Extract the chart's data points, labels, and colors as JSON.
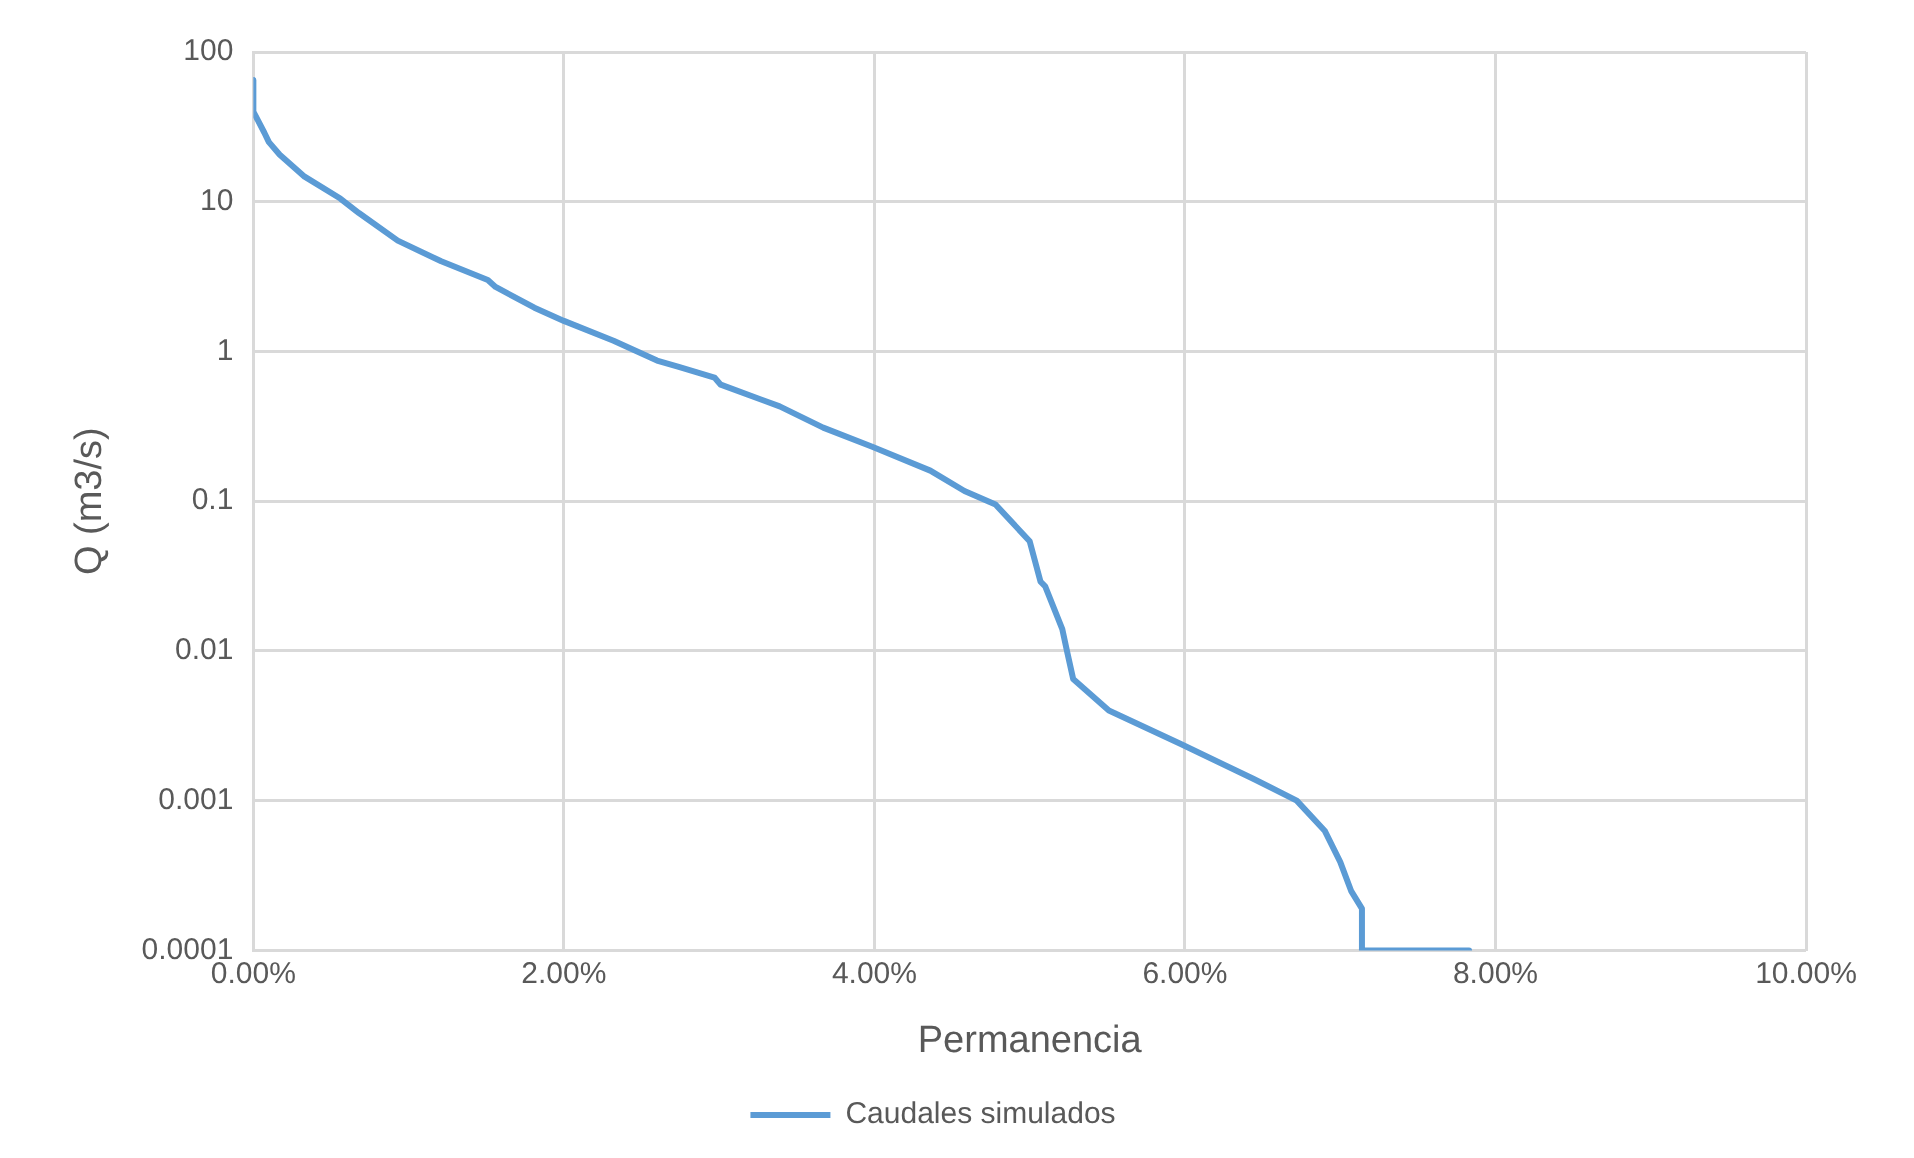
{
  "chart_data": {
    "type": "line",
    "xlabel": "Permanencia",
    "ylabel": "Q (m3/s)",
    "xlim": [
      0,
      10
    ],
    "xticks": [
      {
        "value": 0,
        "label": "0.00%"
      },
      {
        "value": 2,
        "label": "2.00%"
      },
      {
        "value": 4,
        "label": "4.00%"
      },
      {
        "value": 6,
        "label": "6.00%"
      },
      {
        "value": 8,
        "label": "8.00%"
      },
      {
        "value": 10,
        "label": "10.00%"
      }
    ],
    "ylim": [
      0.0001,
      100
    ],
    "yticks": [
      0.0001,
      0.001,
      0.01,
      0.1,
      1,
      10,
      100
    ],
    "log": "y",
    "grid": true,
    "legend": "bottom",
    "marker": "none",
    "line_style": "solid",
    "series": [
      {
        "name": "Caudales simulados",
        "color": "#5b9bd5",
        "x": [
          0,
          0,
          0.07,
          0.1,
          0.17,
          0.33,
          0.56,
          0.68,
          0.93,
          1.21,
          1.51,
          1.56,
          1.81,
          2.0,
          2.32,
          2.6,
          2.74,
          2.97,
          3.01,
          3.39,
          3.67,
          3.99,
          4.36,
          4.58,
          4.78,
          5.0,
          5.07,
          5.1,
          5.21,
          5.24,
          5.28,
          5.51,
          5.97,
          6.44,
          6.72,
          6.9,
          7.0,
          7.07,
          7.14,
          7.14,
          7.83
        ],
        "values": [
          65,
          40,
          29,
          25,
          20.6,
          14.7,
          10.5,
          8.4,
          5.5,
          4.0,
          3.0,
          2.7,
          1.96,
          1.6,
          1.18,
          0.87,
          0.79,
          0.67,
          0.6,
          0.43,
          0.31,
          0.23,
          0.16,
          0.117,
          0.095,
          0.054,
          0.029,
          0.027,
          0.014,
          0.01,
          0.0065,
          0.004,
          0.0024,
          0.0014,
          0.001,
          0.00063,
          0.00039,
          0.00025,
          0.00019,
          0.0001,
          0.0001
        ]
      }
    ]
  }
}
